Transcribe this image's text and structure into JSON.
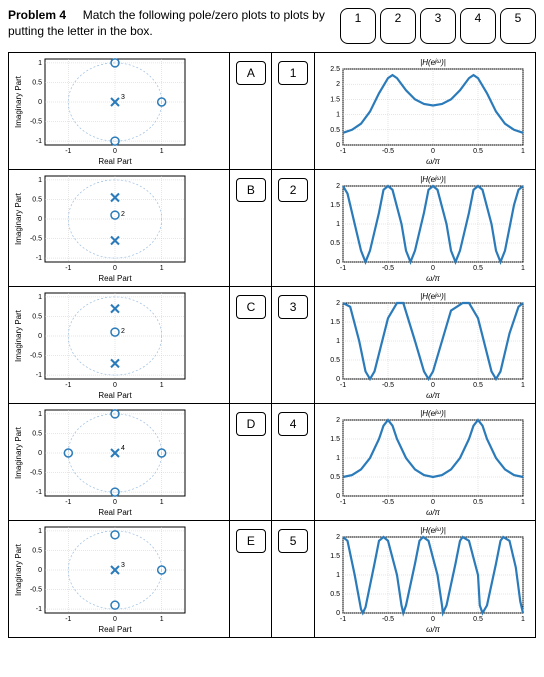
{
  "header": {
    "problem_number": "Problem 4",
    "text": "Match the following pole/zero plots to plots by putting the letter in the box.",
    "num_labels": [
      "1",
      "2",
      "3",
      "4",
      "5"
    ]
  },
  "colors": {
    "curve": "#2b7bba",
    "grid": "#cccccc",
    "axis": "#000000",
    "circle": "#9bbde0"
  },
  "pz_axis": {
    "xlabel": "Real Part",
    "ylabel": "Imaginary Part",
    "xlim": [
      -1.5,
      1.5
    ],
    "ylim": [
      -1.1,
      1.1
    ],
    "xticks": [
      -1,
      0,
      1
    ],
    "yticks": [
      -1,
      -0.5,
      0,
      0.5,
      1
    ]
  },
  "mag_axis": {
    "title": "|H(e^{jω})|",
    "xlabel": "ω/π",
    "xlim": [
      -1,
      1
    ],
    "xticks": [
      -1,
      -0.5,
      0,
      0.5,
      1
    ]
  },
  "rows": [
    {
      "letter": "A",
      "num": "1",
      "pz": {
        "order_label": "3",
        "pole_at_origin": true,
        "zeros": [
          [
            0,
            1
          ],
          [
            0,
            -1
          ],
          [
            1,
            0
          ]
        ]
      },
      "mag": {
        "ylim": [
          0,
          2.5
        ],
        "yticks": [
          0,
          0.5,
          1,
          1.5,
          2,
          2.5
        ],
        "curve": [
          [
            -1,
            0.4
          ],
          [
            -0.9,
            0.5
          ],
          [
            -0.8,
            0.7
          ],
          [
            -0.7,
            1.1
          ],
          [
            -0.6,
            1.7
          ],
          [
            -0.5,
            2.2
          ],
          [
            -0.45,
            2.3
          ],
          [
            -0.4,
            2.2
          ],
          [
            -0.3,
            1.8
          ],
          [
            -0.2,
            1.5
          ],
          [
            -0.1,
            1.35
          ],
          [
            0,
            1.3
          ],
          [
            0.1,
            1.35
          ],
          [
            0.2,
            1.5
          ],
          [
            0.3,
            1.8
          ],
          [
            0.4,
            2.2
          ],
          [
            0.45,
            2.3
          ],
          [
            0.5,
            2.2
          ],
          [
            0.6,
            1.7
          ],
          [
            0.7,
            1.1
          ],
          [
            0.8,
            0.7
          ],
          [
            0.9,
            0.5
          ],
          [
            1,
            0.4
          ]
        ]
      }
    },
    {
      "letter": "B",
      "num": "2",
      "pz": {
        "order_label": "2",
        "pole_at_origin": false,
        "zero_near_origin": true,
        "poles": [
          [
            0,
            0.55
          ],
          [
            0,
            -0.55
          ]
        ]
      },
      "mag": {
        "ylim": [
          0,
          2
        ],
        "yticks": [
          0,
          0.5,
          1,
          1.5,
          2
        ],
        "curve": [
          [
            -1,
            2
          ],
          [
            -0.95,
            1.8
          ],
          [
            -0.85,
            0.8
          ],
          [
            -0.8,
            0.3
          ],
          [
            -0.75,
            0
          ],
          [
            -0.7,
            0.3
          ],
          [
            -0.6,
            1.3
          ],
          [
            -0.55,
            1.9
          ],
          [
            -0.5,
            2
          ],
          [
            -0.45,
            1.9
          ],
          [
            -0.35,
            1.0
          ],
          [
            -0.3,
            0.3
          ],
          [
            -0.25,
            0
          ],
          [
            -0.2,
            0.3
          ],
          [
            -0.1,
            1.3
          ],
          [
            -0.05,
            1.9
          ],
          [
            0,
            2
          ],
          [
            0.05,
            1.9
          ],
          [
            0.15,
            1.0
          ],
          [
            0.2,
            0.3
          ],
          [
            0.25,
            0
          ],
          [
            0.3,
            0.3
          ],
          [
            0.4,
            1.3
          ],
          [
            0.45,
            1.9
          ],
          [
            0.5,
            2
          ],
          [
            0.55,
            1.9
          ],
          [
            0.65,
            1.0
          ],
          [
            0.7,
            0.3
          ],
          [
            0.75,
            0
          ],
          [
            0.8,
            0.3
          ],
          [
            0.9,
            1.5
          ],
          [
            0.95,
            1.9
          ],
          [
            1,
            2
          ]
        ]
      }
    },
    {
      "letter": "C",
      "num": "3",
      "pz": {
        "order_label": "2",
        "pole_at_origin": false,
        "zero_near_origin": true,
        "poles": [
          [
            0,
            0.7
          ],
          [
            0,
            -0.7
          ]
        ]
      },
      "mag": {
        "ylim": [
          0,
          2
        ],
        "yticks": [
          0,
          0.5,
          1,
          1.5,
          2
        ],
        "curve": [
          [
            -1,
            2
          ],
          [
            -0.92,
            1.9
          ],
          [
            -0.82,
            1.0
          ],
          [
            -0.75,
            0.2
          ],
          [
            -0.7,
            0
          ],
          [
            -0.65,
            0.2
          ],
          [
            -0.5,
            1.6
          ],
          [
            -0.4,
            2
          ],
          [
            -0.33,
            2
          ],
          [
            -0.2,
            1.0
          ],
          [
            -0.1,
            0.2
          ],
          [
            -0.05,
            0
          ],
          [
            0,
            0.2
          ],
          [
            0.1,
            1.0
          ],
          [
            0.2,
            1.8
          ],
          [
            0.33,
            2
          ],
          [
            0.4,
            2
          ],
          [
            0.5,
            1.6
          ],
          [
            0.65,
            0.2
          ],
          [
            0.7,
            0
          ],
          [
            0.75,
            0.2
          ],
          [
            0.85,
            1.2
          ],
          [
            0.95,
            1.9
          ],
          [
            1,
            2
          ]
        ]
      }
    },
    {
      "letter": "D",
      "num": "4",
      "pz": {
        "order_label": "4",
        "pole_at_origin": true,
        "zeros": [
          [
            0,
            1
          ],
          [
            0,
            -1
          ],
          [
            1,
            0
          ],
          [
            -1,
            0
          ]
        ]
      },
      "mag": {
        "ylim": [
          0,
          2
        ],
        "yticks": [
          0,
          0.5,
          1,
          1.5,
          2
        ],
        "curve": [
          [
            -1,
            0.5
          ],
          [
            -0.9,
            0.55
          ],
          [
            -0.8,
            0.7
          ],
          [
            -0.7,
            1.0
          ],
          [
            -0.6,
            1.5
          ],
          [
            -0.55,
            1.85
          ],
          [
            -0.5,
            2
          ],
          [
            -0.45,
            1.85
          ],
          [
            -0.4,
            1.5
          ],
          [
            -0.3,
            1.0
          ],
          [
            -0.2,
            0.7
          ],
          [
            -0.1,
            0.55
          ],
          [
            0,
            0.5
          ],
          [
            0.1,
            0.55
          ],
          [
            0.2,
            0.7
          ],
          [
            0.3,
            1.0
          ],
          [
            0.4,
            1.5
          ],
          [
            0.45,
            1.85
          ],
          [
            0.5,
            2
          ],
          [
            0.55,
            1.85
          ],
          [
            0.6,
            1.5
          ],
          [
            0.7,
            1.0
          ],
          [
            0.8,
            0.7
          ],
          [
            0.9,
            0.55
          ],
          [
            1,
            0.5
          ]
        ]
      }
    },
    {
      "letter": "E",
      "num": "5",
      "pz": {
        "order_label": "3",
        "pole_at_origin": true,
        "zeros": [
          [
            0,
            0.9
          ],
          [
            0,
            -0.9
          ],
          [
            1,
            0
          ]
        ]
      },
      "mag": {
        "ylim": [
          0,
          2
        ],
        "yticks": [
          0,
          0.5,
          1,
          1.5,
          2
        ],
        "curve": [
          [
            -1,
            2
          ],
          [
            -0.95,
            1.9
          ],
          [
            -0.87,
            1.0
          ],
          [
            -0.8,
            0.1
          ],
          [
            -0.78,
            0
          ],
          [
            -0.75,
            0.15
          ],
          [
            -0.65,
            1.3
          ],
          [
            -0.6,
            1.9
          ],
          [
            -0.55,
            2
          ],
          [
            -0.5,
            1.9
          ],
          [
            -0.4,
            1.0
          ],
          [
            -0.35,
            0.2
          ],
          [
            -0.33,
            0
          ],
          [
            -0.3,
            0.2
          ],
          [
            -0.2,
            1.3
          ],
          [
            -0.15,
            1.9
          ],
          [
            -0.11,
            2
          ],
          [
            -0.05,
            1.9
          ],
          [
            0.05,
            1.0
          ],
          [
            0.1,
            0.2
          ],
          [
            0.11,
            0
          ],
          [
            0.15,
            0.2
          ],
          [
            0.25,
            1.3
          ],
          [
            0.3,
            1.9
          ],
          [
            0.33,
            2
          ],
          [
            0.4,
            1.9
          ],
          [
            0.5,
            1.0
          ],
          [
            0.52,
            0.2
          ],
          [
            0.55,
            0
          ],
          [
            0.6,
            0.2
          ],
          [
            0.7,
            1.3
          ],
          [
            0.75,
            1.9
          ],
          [
            0.78,
            2
          ],
          [
            0.85,
            1.9
          ],
          [
            0.92,
            1.2
          ],
          [
            0.97,
            0.3
          ],
          [
            1,
            0
          ]
        ]
      }
    }
  ]
}
